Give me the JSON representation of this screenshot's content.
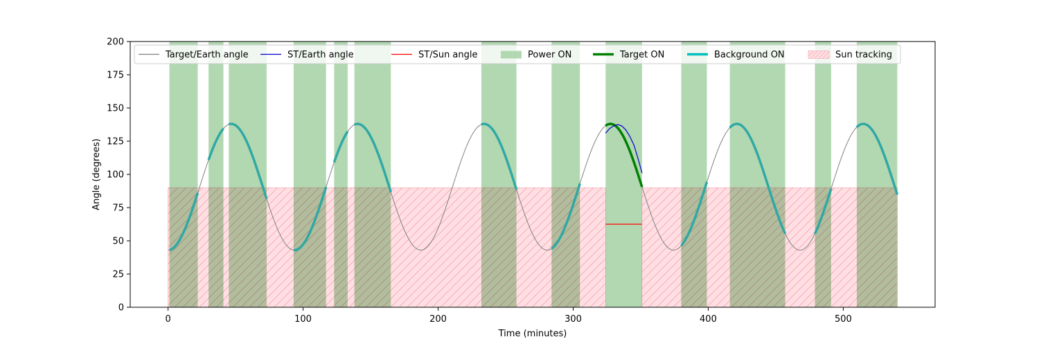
{
  "chart_data": {
    "type": "line",
    "xlabel": "Time (minutes)",
    "ylabel": "Angle (degrees)",
    "xlim": [
      -28,
      568
    ],
    "ylim": [
      0,
      200
    ],
    "xticks": [
      0,
      100,
      200,
      300,
      400,
      500
    ],
    "yticks": [
      0,
      25,
      50,
      75,
      100,
      125,
      150,
      175,
      200
    ],
    "grid": false,
    "legend_position": "top",
    "legend": [
      {
        "label": "Target/Earth angle",
        "kind": "line",
        "color": "#808080"
      },
      {
        "label": "ST/Earth angle",
        "kind": "line",
        "color": "#0000cc"
      },
      {
        "label": "ST/Sun angle",
        "kind": "line",
        "color": "#ff0000"
      },
      {
        "label": "Power ON",
        "kind": "patch",
        "color": "#b2d8b2"
      },
      {
        "label": "Target ON",
        "kind": "thickline",
        "color": "#008000"
      },
      {
        "label": "Background ON",
        "kind": "thickline",
        "color": "#00bfbf"
      },
      {
        "label": "Sun tracking",
        "kind": "hatch",
        "color": "#ffdfe3"
      }
    ],
    "target_earth_angle": {
      "t_start": 0,
      "t_end": 540,
      "mean": 90.5,
      "amplitude": 47.5,
      "period_minutes": 93.6,
      "phase_min_at": 0
    },
    "power_on_intervals": [
      [
        1,
        22
      ],
      [
        30,
        41
      ],
      [
        45,
        73
      ],
      [
        93,
        117
      ],
      [
        123,
        133
      ],
      [
        138,
        165
      ],
      [
        232,
        258
      ],
      [
        284,
        305
      ],
      [
        324,
        351
      ],
      [
        380,
        399
      ],
      [
        416,
        457
      ],
      [
        479,
        491
      ],
      [
        510,
        540
      ]
    ],
    "target_on_intervals": [
      [
        324,
        351
      ]
    ],
    "background_on_intervals": [
      [
        1,
        22
      ],
      [
        30,
        41
      ],
      [
        45,
        73
      ],
      [
        93,
        117
      ],
      [
        123,
        133
      ],
      [
        138,
        165
      ],
      [
        232,
        258
      ],
      [
        284,
        305
      ],
      [
        380,
        399
      ],
      [
        416,
        457
      ],
      [
        479,
        491
      ],
      [
        510,
        540
      ]
    ],
    "sun_tracking_intervals": [
      [
        0,
        324
      ],
      [
        351,
        540
      ]
    ],
    "sun_tracking_level": 90,
    "st_earth_angle": [
      [
        324,
        131
      ],
      [
        327,
        134.5
      ],
      [
        330,
        136.5
      ],
      [
        333,
        137.5
      ],
      [
        336,
        136.5
      ],
      [
        339,
        133.5
      ],
      [
        342,
        128.5
      ],
      [
        345,
        122
      ],
      [
        348,
        112
      ],
      [
        351,
        101
      ]
    ],
    "st_sun_angle": [
      [
        324,
        62.5
      ],
      [
        351,
        62.5
      ]
    ]
  },
  "colors": {
    "power": "#b2d8b2",
    "sun_fill": "#ffdfe3",
    "sun_hatch": "#f2a6b0",
    "target_earth": "#808080",
    "st_earth": "#0000cc",
    "st_sun": "#ff0000",
    "target_on": "#008000",
    "background_on": "#30a8a3"
  }
}
